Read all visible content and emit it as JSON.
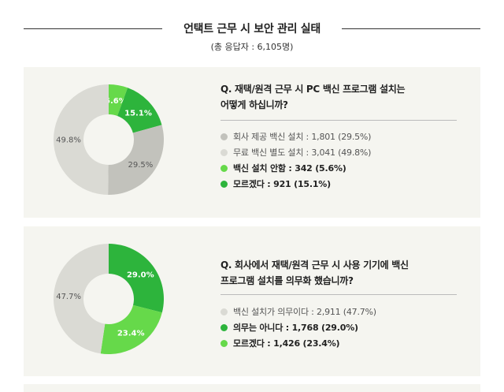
{
  "header": {
    "title": "언택트 근무 시 보안 관리 실태",
    "subtitle": "(총 응답자 : 6,105명)"
  },
  "colors": {
    "dark_gray": "#c2c2bc",
    "light_gray": "#dadad4",
    "light_green": "#66d94a",
    "green": "#2db43c",
    "panel_bg": "#f5f5f0"
  },
  "chart_data": [
    {
      "type": "pie",
      "donut": true,
      "question_lines": [
        "Q. 재택/원격 근무 시 PC 백신 프로그램 설치는",
        "어떻게 하십니까?"
      ],
      "slices": [
        {
          "legend": "회사 제공 백신 설치 : 1,801 (29.5%)",
          "count": 1801,
          "percent": 29.5,
          "label": "29.5%",
          "color": "#c2c2bc",
          "emphasis": false
        },
        {
          "legend": "무료 백신 별도 설치 : 3,041 (49.8%)",
          "count": 3041,
          "percent": 49.8,
          "label": "49.8%",
          "color": "#dadad4",
          "emphasis": false
        },
        {
          "legend": "백신 설치 안함 : 342 (5.6%)",
          "count": 342,
          "percent": 5.6,
          "label": "5.6%",
          "color": "#66d94a",
          "emphasis": true
        },
        {
          "legend": "모르겠다 : 921 (15.1%)",
          "count": 921,
          "percent": 15.1,
          "label": "15.1%",
          "color": "#2db43c",
          "emphasis": true
        }
      ]
    },
    {
      "type": "pie",
      "donut": true,
      "question_lines": [
        "Q. 회사에서 재택/원격 근무 시 사용 기기에 백신",
        "프로그램 설치를 의무화 했습니까?"
      ],
      "slices": [
        {
          "legend": "백신 설치가 의무이다 : 2,911 (47.7%)",
          "count": 2911,
          "percent": 47.7,
          "label": "47.7%",
          "color": "#dadad4",
          "emphasis": false
        },
        {
          "legend": "의무는 아니다 : 1,768 (29.0%)",
          "count": 1768,
          "percent": 29.0,
          "label": "29.0%",
          "color": "#2db43c",
          "emphasis": true
        },
        {
          "legend": "모르겠다 : 1,426 (23.4%)",
          "count": 1426,
          "percent": 23.4,
          "label": "23.4%",
          "color": "#66d94a",
          "emphasis": true
        }
      ]
    }
  ]
}
